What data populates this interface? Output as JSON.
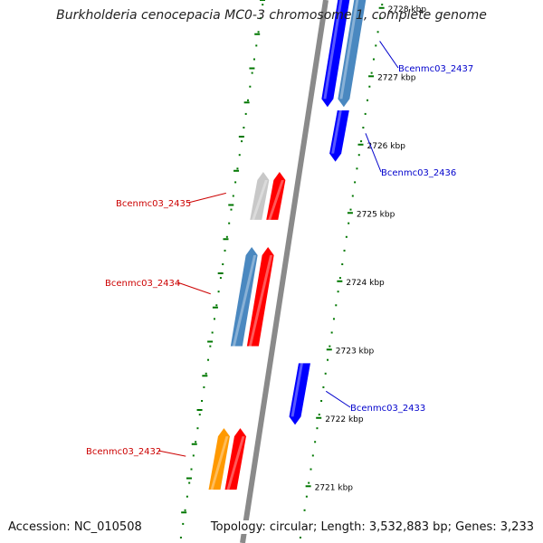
{
  "title": "Burkholderia cenocepacia MC0-3 chromosome 1, complete genome",
  "accession_text": "Accession: NC_010508",
  "topology_text": "Topology: circular; Length: 3,532,883 bp; Genes: 3,233",
  "ticks": [
    {
      "label": "2728 kbp",
      "kbp": 2728
    },
    {
      "label": "2727 kbp",
      "kbp": 2727
    },
    {
      "label": "2726 kbp",
      "kbp": 2726
    },
    {
      "label": "2725 kbp",
      "kbp": 2725
    },
    {
      "label": "2724 kbp",
      "kbp": 2724
    },
    {
      "label": "2723 kbp",
      "kbp": 2723
    },
    {
      "label": "2722 kbp",
      "kbp": 2722
    },
    {
      "label": "2721 kbp",
      "kbp": 2721
    }
  ],
  "colors": {
    "backbone": "#8c8c8c",
    "forward_label": "#0000cc",
    "reverse_label": "#cc0000",
    "tick": "#007700"
  },
  "genes": [
    {
      "name": "Bcenmc03_2437",
      "strand": "+",
      "ring": "outer",
      "color": "#4a88c0",
      "start_kbp": 2726.55,
      "end_kbp": 2728.4,
      "label_side": "right"
    },
    {
      "name": "",
      "strand": "+",
      "ring": "outer",
      "color": "#0000ff",
      "start_kbp": 2726.55,
      "end_kbp": 2728.4,
      "label_side": "none",
      "lane": "inner"
    },
    {
      "name": "Bcenmc03_2436",
      "strand": "+",
      "ring": "inner",
      "color": "#0000ff",
      "start_kbp": 2725.75,
      "end_kbp": 2726.5,
      "label_side": "right"
    },
    {
      "name": "Bcenmc03_2435",
      "strand": "-",
      "ring": "inner",
      "color": "#c8c8c8",
      "start_kbp": 2724.9,
      "end_kbp": 2725.6,
      "label_side": "left"
    },
    {
      "name": "",
      "strand": "-",
      "ring": "inner",
      "color": "#ff0000",
      "start_kbp": 2724.9,
      "end_kbp": 2725.6,
      "label_side": "none",
      "lane": "inner"
    },
    {
      "name": "Bcenmc03_2434",
      "strand": "-",
      "ring": "outer",
      "color": "#4a88c0",
      "start_kbp": 2723.05,
      "end_kbp": 2724.5,
      "label_side": "left"
    },
    {
      "name": "",
      "strand": "-",
      "ring": "inner",
      "color": "#ff0000",
      "start_kbp": 2723.05,
      "end_kbp": 2724.5,
      "label_side": "none",
      "lane": "inner"
    },
    {
      "name": "Bcenmc03_2433",
      "strand": "+",
      "ring": "inner",
      "color": "#0000ff",
      "start_kbp": 2721.9,
      "end_kbp": 2722.8,
      "label_side": "right"
    },
    {
      "name": "Bcenmc03_2432",
      "strand": "-",
      "ring": "outer",
      "color": "#ff9900",
      "start_kbp": 2720.95,
      "end_kbp": 2721.85,
      "label_side": "left"
    },
    {
      "name": "",
      "strand": "-",
      "ring": "inner",
      "color": "#ff0000",
      "start_kbp": 2720.95,
      "end_kbp": 2721.85,
      "label_side": "none",
      "lane": "inner"
    }
  ]
}
